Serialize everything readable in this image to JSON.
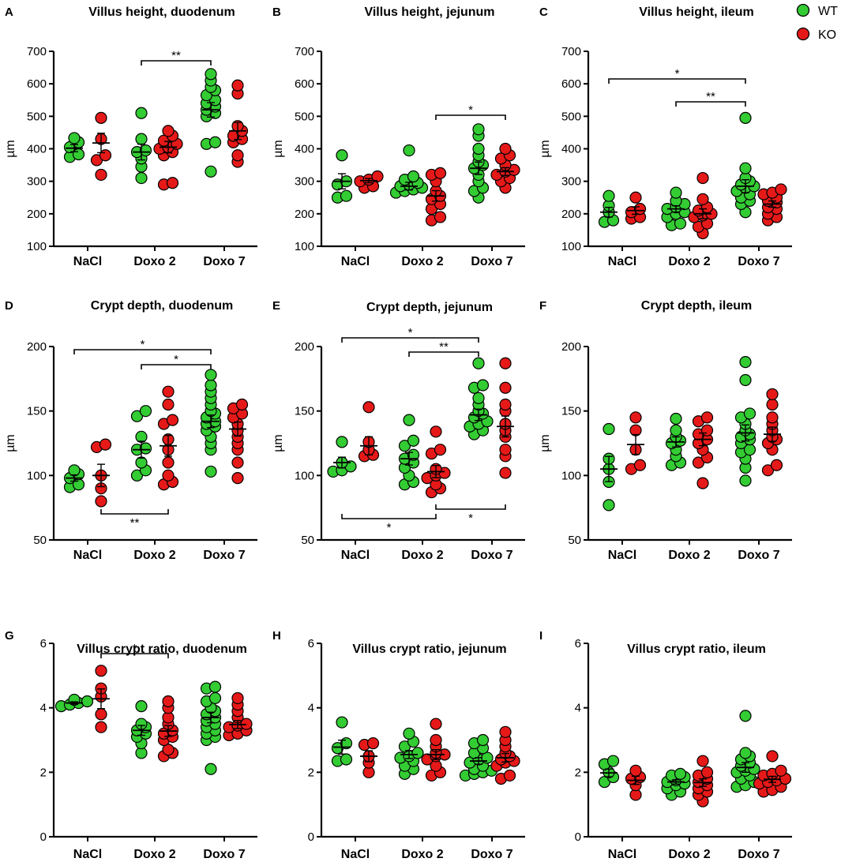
{
  "legend": [
    {
      "label": "WT",
      "color": "#33cc33"
    },
    {
      "label": "KO",
      "color": "#e61919"
    }
  ],
  "categories": [
    "NaCl",
    "Doxo 2",
    "Doxo 7"
  ],
  "chart_data": [
    {
      "panel": "A",
      "type": "scatter",
      "title": "Villus height, duodenum",
      "ylabel": "µm",
      "ylim": [
        100,
        700
      ],
      "yticks": [
        100,
        200,
        300,
        400,
        500,
        600,
        700
      ],
      "series": [
        {
          "name": "WT",
          "groups": [
            [
              433,
              420,
              405,
              383,
              375
            ],
            [
              510,
              430,
              395,
              390,
              370,
              345,
              310
            ],
            [
              630,
              610,
              590,
              580,
              565,
              550,
              540,
              530,
              520,
              510,
              500,
              420,
              415,
              330
            ]
          ],
          "means": [
            402,
            390,
            520
          ]
        },
        {
          "name": "KO",
          "groups": [
            [
              495,
              430,
              380,
              365,
              320
            ],
            [
              455,
              440,
              425,
              415,
              405,
              400,
              390,
              380,
              295,
              290
            ],
            [
              595,
              570,
              470,
              455,
              440,
              430,
              420,
              380,
              360
            ]
          ],
          "means": [
            418,
            405,
            455
          ]
        }
      ],
      "significance": [
        {
          "from": "Doxo 2 WT",
          "to": "Doxo 7 WT",
          "label": "**"
        }
      ]
    },
    {
      "panel": "B",
      "type": "scatter",
      "title": "Villus height, jejunum",
      "ylabel": "µm",
      "ylim": [
        100,
        700
      ],
      "yticks": [
        100,
        200,
        300,
        400,
        500,
        600,
        700
      ],
      "series": [
        {
          "name": "WT",
          "groups": [
            [
              380,
              300,
              290,
              255,
              250
            ],
            [
              395,
              315,
              305,
              295,
              290,
              285,
              280,
              275,
              270,
              265
            ],
            [
              460,
              440,
              400,
              380,
              360,
              350,
              340,
              320,
              300,
              280,
              270,
              250
            ]
          ],
          "means": [
            300,
            285,
            340
          ]
        },
        {
          "name": "KO",
          "groups": [
            [
              315,
              305,
              300,
              285,
              280
            ],
            [
              325,
              320,
              300,
              270,
              255,
              245,
              230,
              215,
              190,
              180
            ],
            [
              400,
              380,
              370,
              350,
              335,
              330,
              320,
              310,
              300,
              280
            ]
          ],
          "means": [
            302,
            255,
            330
          ]
        }
      ],
      "significance": [
        {
          "from": "Doxo 2 KO",
          "to": "Doxo 7 KO",
          "label": "*"
        }
      ]
    },
    {
      "panel": "C",
      "type": "scatter",
      "title": "Villus height, ileum",
      "ylabel": "µm",
      "ylim": [
        100,
        700
      ],
      "yticks": [
        100,
        200,
        300,
        400,
        500,
        600,
        700
      ],
      "series": [
        {
          "name": "WT",
          "groups": [
            [
              255,
              225,
              205,
              180,
              175
            ],
            [
              265,
              240,
              230,
              220,
              215,
              205,
              200,
              190,
              170,
              165
            ],
            [
              495,
              340,
              310,
              300,
              290,
              285,
              280,
              270,
              260,
              250,
              240,
              230,
              205
            ]
          ],
          "means": [
            205,
            215,
            285
          ]
        },
        {
          "name": "KO",
          "groups": [
            [
              250,
              215,
              205,
              190,
              185
            ],
            [
              310,
              245,
              220,
              210,
              200,
              195,
              190,
              170,
              160,
              140
            ],
            [
              275,
              265,
              260,
              250,
              240,
              235,
              220,
              215,
              200,
              190,
              180
            ]
          ],
          "means": [
            210,
            200,
            230
          ]
        }
      ],
      "significance": [
        {
          "from": "NaCl WT",
          "to": "Doxo 7 WT",
          "label": "*"
        },
        {
          "from": "Doxo 2 WT",
          "to": "Doxo 7 WT",
          "label": "**"
        }
      ]
    },
    {
      "panel": "D",
      "type": "scatter",
      "title": "Crypt depth, duodenum",
      "ylabel": "µm",
      "ylim": [
        50,
        200
      ],
      "yticks": [
        50,
        100,
        150,
        200
      ],
      "series": [
        {
          "name": "WT",
          "groups": [
            [
              104,
              101,
              98,
              93,
              91
            ],
            [
              150,
              146,
              130,
              121,
              120,
              110,
              104,
              100
            ],
            [
              178,
              170,
              165,
              160,
              155,
              150,
              148,
              145,
              142,
              140,
              138,
              135,
              130,
              125,
              120,
              103
            ]
          ],
          "means": [
            98,
            120,
            142
          ]
        },
        {
          "name": "KO",
          "groups": [
            [
              124,
              122,
              100,
              90,
              80
            ],
            [
              165,
              155,
              143,
              140,
              128,
              120,
              110,
              100,
              95,
              93
            ],
            [
              155,
              152,
              148,
              145,
              140,
              135,
              130,
              125,
              120,
              110,
              98
            ]
          ],
          "means": [
            100,
            123,
            136
          ]
        }
      ],
      "significance": [
        {
          "from": "NaCl WT",
          "to": "Doxo 7 WT",
          "label": "*"
        },
        {
          "from": "Doxo 2 WT",
          "to": "Doxo 7 WT",
          "label": "*"
        },
        {
          "from": "NaCl KO",
          "to": "Doxo 2 KO",
          "label": "**"
        }
      ]
    },
    {
      "panel": "E",
      "type": "scatter",
      "title": "Crypt depth, jejunum",
      "ylabel": "µm",
      "ylim": [
        50,
        200
      ],
      "yticks": [
        50,
        100,
        150,
        200
      ],
      "series": [
        {
          "name": "WT",
          "groups": [
            [
              126,
              110,
              107,
              104,
              103
            ],
            [
              143,
              127,
              123,
              116,
              113,
              110,
              106,
              100,
              95,
              93
            ],
            [
              187,
              170,
              168,
              160,
              155,
              150,
              148,
              145,
              142,
              140,
              138,
              135,
              132
            ]
          ],
          "means": [
            110,
            113,
            147
          ]
        },
        {
          "name": "KO",
          "groups": [
            [
              153,
              126,
              120,
              116,
              115
            ],
            [
              134,
              120,
              117,
              105,
              102,
              100,
              98,
              93,
              90,
              87
            ],
            [
              187,
              168,
              155,
              150,
              140,
              135,
              130,
              120,
              115,
              102
            ]
          ],
          "means": [
            123,
            103,
            138
          ]
        }
      ],
      "significance": [
        {
          "from": "NaCl WT",
          "to": "Doxo 7 WT",
          "label": "*"
        },
        {
          "from": "Doxo 2 WT",
          "to": "Doxo 7 WT",
          "label": "**"
        },
        {
          "from": "NaCl WT",
          "to": "Doxo 2 KO",
          "label": "*"
        },
        {
          "from": "Doxo 2 KO",
          "to": "Doxo 7 KO",
          "label": "*"
        }
      ]
    },
    {
      "panel": "F",
      "type": "scatter",
      "title": "Crypt depth, ileum",
      "ylabel": "µm",
      "ylim": [
        50,
        200
      ],
      "yticks": [
        50,
        100,
        150,
        200
      ],
      "series": [
        {
          "name": "WT",
          "groups": [
            [
              136,
              113,
              105,
              95,
              77
            ],
            [
              144,
              135,
              130,
              127,
              125,
              120,
              115,
              110,
              108
            ],
            [
              188,
              174,
              148,
              145,
              140,
              135,
              132,
              130,
              128,
              125,
              120,
              118,
              113,
              106,
              96
            ]
          ],
          "means": [
            105,
            126,
            133
          ]
        },
        {
          "name": "KO",
          "groups": [
            [
              145,
              135,
              120,
              108,
              105
            ],
            [
              145,
              142,
              135,
              132,
              128,
              125,
              120,
              114,
              110,
              94
            ],
            [
              163,
              155,
              145,
              140,
              135,
              130,
              128,
              125,
              120,
              108,
              104
            ]
          ],
          "means": [
            124,
            128,
            132
          ]
        }
      ],
      "significance": []
    },
    {
      "panel": "G",
      "type": "scatter",
      "title": "Villus crypt ratio, duodenum",
      "ylabel": "",
      "ylim": [
        0,
        6
      ],
      "yticks": [
        0,
        2,
        4,
        6
      ],
      "series": [
        {
          "name": "WT",
          "groups": [
            [
              4.25,
              4.2,
              4.15,
              4.1,
              4.05
            ],
            [
              4.05,
              3.5,
              3.4,
              3.3,
              3.2,
              3.1,
              2.9,
              2.6
            ],
            [
              4.65,
              4.6,
              4.3,
              4.2,
              4.0,
              3.9,
              3.8,
              3.7,
              3.6,
              3.5,
              3.4,
              3.3,
              3.2,
              3.1,
              3.0,
              2.1
            ]
          ],
          "means": [
            4.15,
            3.3,
            3.7
          ]
        },
        {
          "name": "KO",
          "groups": [
            [
              5.15,
              4.6,
              4.35,
              3.8,
              3.4
            ],
            [
              4.2,
              4.0,
              3.7,
              3.5,
              3.3,
              3.2,
              3.1,
              3.0,
              2.7,
              2.6,
              2.5
            ],
            [
              4.3,
              4.1,
              3.9,
              3.7,
              3.5,
              3.45,
              3.4,
              3.3,
              3.2,
              3.15
            ]
          ],
          "means": [
            4.28,
            3.28,
            3.48
          ]
        }
      ],
      "significance": [
        {
          "from": "NaCl KO",
          "to": "Doxo 2 KO",
          "label": "*"
        }
      ]
    },
    {
      "panel": "H",
      "type": "scatter",
      "title": "Villus crypt ratio, jejunum",
      "ylabel": "",
      "ylim": [
        0,
        6
      ],
      "yticks": [
        0,
        2,
        4,
        6
      ],
      "series": [
        {
          "name": "WT",
          "groups": [
            [
              3.55,
              2.9,
              2.75,
              2.4,
              2.35
            ],
            [
              3.2,
              2.95,
              2.8,
              2.6,
              2.5,
              2.45,
              2.35,
              2.2,
              2.1,
              1.95
            ],
            [
              3.0,
              2.9,
              2.75,
              2.6,
              2.45,
              2.4,
              2.3,
              2.2,
              2.1,
              2.05,
              2.0,
              1.95,
              1.9
            ]
          ],
          "means": [
            2.78,
            2.55,
            2.35
          ]
        },
        {
          "name": "KO",
          "groups": [
            [
              2.9,
              2.85,
              2.5,
              2.3,
              2.0
            ],
            [
              3.5,
              3.0,
              2.8,
              2.6,
              2.55,
              2.5,
              2.4,
              2.2,
              2.0,
              1.9
            ],
            [
              3.25,
              3.0,
              2.8,
              2.6,
              2.5,
              2.4,
              2.35,
              2.3,
              2.2,
              1.9,
              1.8
            ]
          ],
          "means": [
            2.5,
            2.55,
            2.45
          ]
        }
      ],
      "significance": []
    },
    {
      "panel": "I",
      "type": "scatter",
      "title": "Villus crypt ratio, ileum",
      "ylabel": "",
      "ylim": [
        0,
        6
      ],
      "yticks": [
        0,
        2,
        4,
        6
      ],
      "series": [
        {
          "name": "WT",
          "groups": [
            [
              2.35,
              2.25,
              2.0,
              1.85,
              1.7
            ],
            [
              1.95,
              1.9,
              1.85,
              1.75,
              1.7,
              1.65,
              1.6,
              1.5,
              1.4,
              1.3
            ],
            [
              3.75,
              2.6,
              2.5,
              2.4,
              2.3,
              2.2,
              2.1,
              2.05,
              2.0,
              1.9,
              1.8,
              1.7,
              1.6,
              1.55
            ]
          ],
          "means": [
            1.98,
            1.7,
            2.15
          ]
        },
        {
          "name": "KO",
          "groups": [
            [
              2.05,
              1.85,
              1.8,
              1.6,
              1.3
            ],
            [
              2.35,
              2.0,
              1.9,
              1.8,
              1.7,
              1.6,
              1.5,
              1.4,
              1.3,
              1.1
            ],
            [
              2.5,
              2.05,
              1.95,
              1.9,
              1.8,
              1.75,
              1.7,
              1.65,
              1.55,
              1.45,
              1.4
            ]
          ],
          "means": [
            1.75,
            1.68,
            1.78
          ]
        }
      ],
      "significance": []
    }
  ]
}
